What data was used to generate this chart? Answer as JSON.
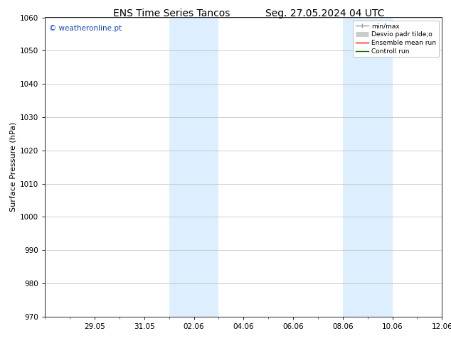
{
  "title_left": "ENS Time Series Tancos",
  "title_right": "Seg. 27.05.2024 04 UTC",
  "ylabel": "Surface Pressure (hPa)",
  "ylim": [
    970,
    1060
  ],
  "yticks": [
    970,
    980,
    990,
    1000,
    1010,
    1020,
    1030,
    1040,
    1050,
    1060
  ],
  "xtick_labels": [
    "29.05",
    "31.05",
    "02.06",
    "04.06",
    "06.06",
    "08.06",
    "10.06",
    "12.06"
  ],
  "shaded_color": "#ddeeff",
  "watermark_text": "© weatheronline.pt",
  "watermark_color": "#1144bb",
  "legend_entries": [
    {
      "label": "min/max",
      "color": "#999999",
      "lw": 1.0
    },
    {
      "label": "Desvio padr tilde;o",
      "color": "#cccccc",
      "lw": 5
    },
    {
      "label": "Ensemble mean run",
      "color": "#ff0000",
      "lw": 1.0
    },
    {
      "label": "Controll run",
      "color": "#007700",
      "lw": 1.0
    }
  ],
  "bg_color": "#ffffff",
  "grid_color": "#bbbbbb",
  "title_fontsize": 10,
  "axis_fontsize": 8,
  "tick_fontsize": 7.5,
  "legend_fontsize": 6.5,
  "watermark_fontsize": 7.5
}
